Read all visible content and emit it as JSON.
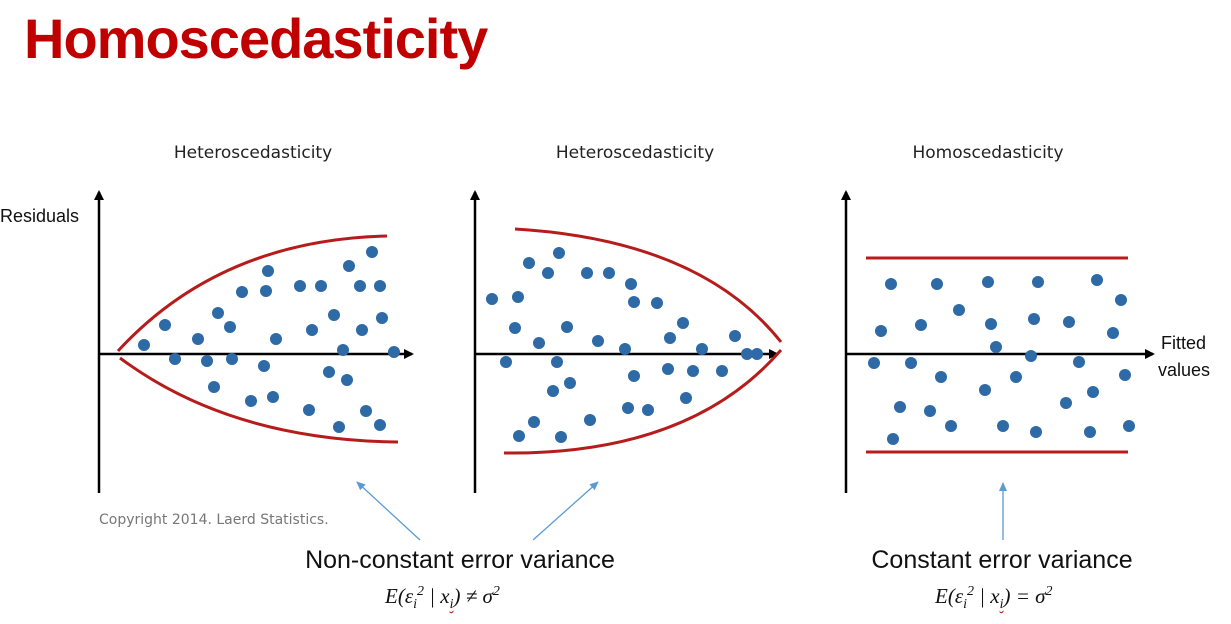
{
  "title": "Homoscedasticity",
  "panels": [
    {
      "title": "Heteroscedasticity"
    },
    {
      "title": "Heteroscedasticity"
    },
    {
      "title": "Homoscedasticity"
    }
  ],
  "axis": {
    "y_label": "Residuals",
    "x_label_line1": "Fitted",
    "x_label_line2": "values"
  },
  "copyright": "Copyright 2014. Laerd Statistics.",
  "captions": {
    "left": "Non-constant error variance",
    "right": "Constant error variance"
  },
  "formulas": {
    "left": {
      "E": "E(ε",
      "i1": "i",
      "sq": "2",
      "mid": " | x",
      "i2": "i",
      "tail": ") ≠ σ",
      "sq2": "2"
    },
    "right": {
      "E": "E(ε",
      "i1": "i",
      "sq": "2",
      "mid": " | x",
      "i2": "i",
      "tail": ") = σ",
      "sq2": "2"
    }
  },
  "colors": {
    "title": "#c00000",
    "envelope": "#b71c1c",
    "dot": "#2e6aa6",
    "arrow": "#5b9bd5"
  }
}
